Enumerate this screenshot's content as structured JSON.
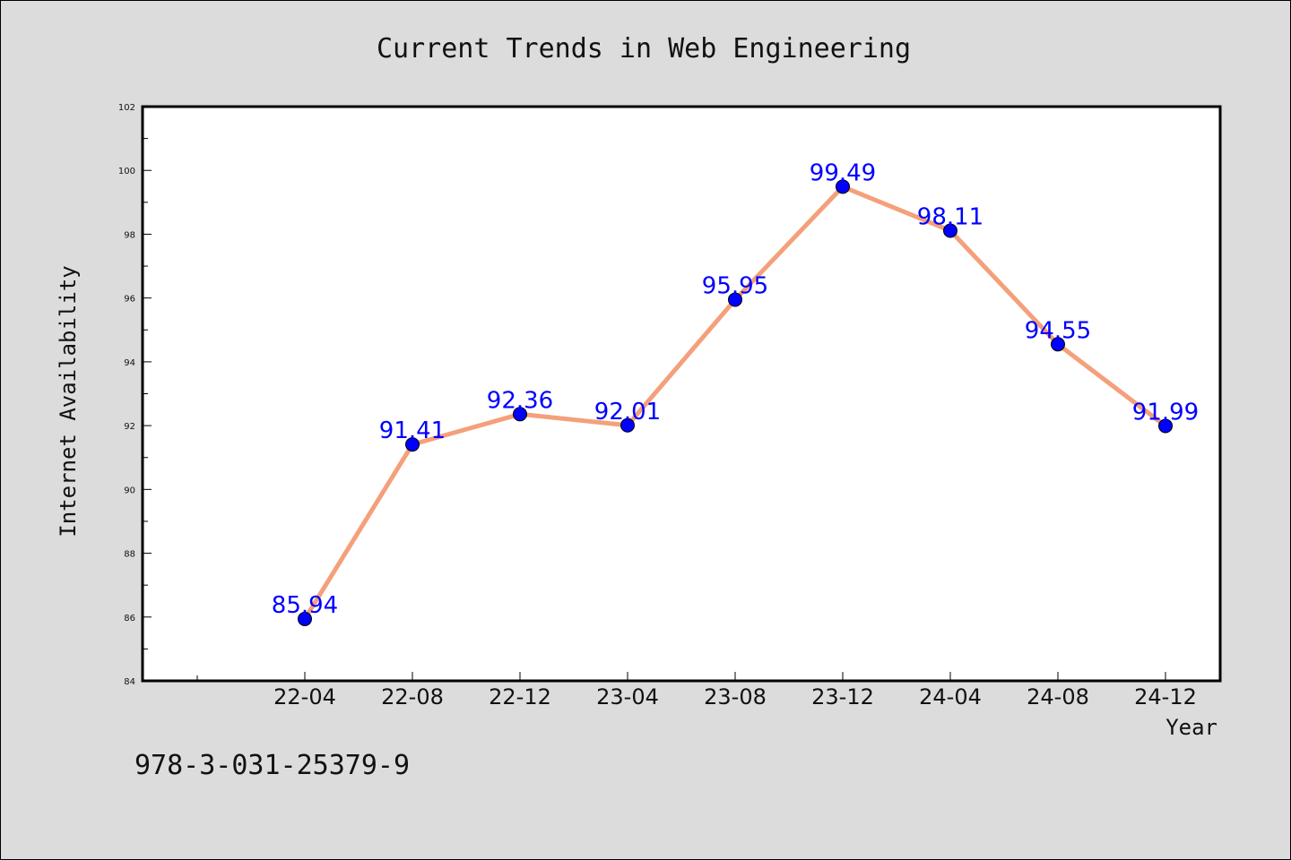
{
  "chart_data": {
    "type": "line",
    "title": "Current Trends in Web Engineering",
    "xlabel": "Year",
    "ylabel": "Internet Availability",
    "categories": [
      "22-04",
      "22-08",
      "22-12",
      "23-04",
      "23-08",
      "23-12",
      "24-04",
      "24-08",
      "24-12"
    ],
    "series": [
      {
        "values": [
          85.94,
          91.41,
          92.36,
          92.01,
          95.95,
          99.49,
          98.11,
          94.55,
          91.99
        ],
        "line_color": "#f4a07a",
        "marker_color": "#0000ff"
      }
    ],
    "data_labels": [
      "85.94",
      "91.41",
      "92.36",
      "92.01",
      "95.95",
      "99.49",
      "98.11",
      "94.55",
      "91.99"
    ],
    "ylim": [
      84,
      102
    ],
    "yticks": [
      "84",
      "86",
      "88",
      "90",
      "92",
      "94",
      "96",
      "98",
      "100",
      "102"
    ],
    "grid": false,
    "legend": "none"
  },
  "footer_note": "978-3-031-25379-9"
}
